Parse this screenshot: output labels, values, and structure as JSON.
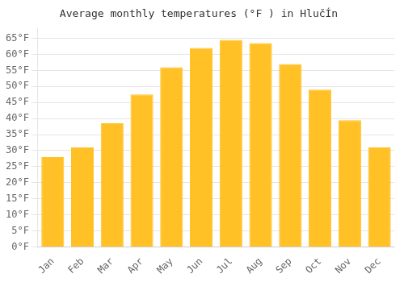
{
  "chart_data": {
    "type": "bar",
    "title": "Average monthly temperatures (°F ) in HlučÍn",
    "categories": [
      "Jan",
      "Feb",
      "Mar",
      "Apr",
      "May",
      "Jun",
      "Jul",
      "Aug",
      "Sep",
      "Oct",
      "Nov",
      "Dec"
    ],
    "values": [
      28,
      31,
      38.5,
      47.5,
      56,
      62,
      64.5,
      63.5,
      57,
      49,
      39.5,
      31
    ],
    "color": "#FFC125",
    "ylim": [
      0,
      68
    ],
    "yticks": [
      {
        "value": 0,
        "label": "0°F"
      },
      {
        "value": 5,
        "label": "5°F"
      },
      {
        "value": 10,
        "label": "10°F"
      },
      {
        "value": 15,
        "label": "15°F"
      },
      {
        "value": 20,
        "label": "20°F"
      },
      {
        "value": 25,
        "label": "25°F"
      },
      {
        "value": 30,
        "label": "30°F"
      },
      {
        "value": 35,
        "label": "35°F"
      },
      {
        "value": 40,
        "label": "40°F"
      },
      {
        "value": 45,
        "label": "45°F"
      },
      {
        "value": 50,
        "label": "50°F"
      },
      {
        "value": 55,
        "label": "55°F"
      },
      {
        "value": 60,
        "label": "60°F"
      },
      {
        "value": 65,
        "label": "65°F"
      }
    ],
    "grid": true
  }
}
